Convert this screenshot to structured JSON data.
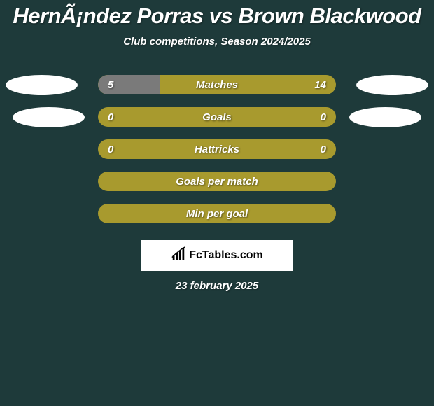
{
  "title": "HernÃ¡ndez Porras vs Brown Blackwood",
  "subtitle": "Club competitions, Season 2024/2025",
  "date": "23 february 2025",
  "colors": {
    "background": "#1e3a3a",
    "bar_base": "#a89a2e",
    "left_fill": "#7a7a7a",
    "right_fill": "#a89a2e",
    "text": "#ffffff",
    "avatar": "#ffffff"
  },
  "branding": {
    "text": "FcTables.com"
  },
  "stats": [
    {
      "label": "Matches",
      "left_value": "5",
      "right_value": "14",
      "left_num": 5,
      "right_num": 14,
      "show_avatars": true,
      "avatar_variant": 1
    },
    {
      "label": "Goals",
      "left_value": "0",
      "right_value": "0",
      "left_num": 0,
      "right_num": 0,
      "show_avatars": true,
      "avatar_variant": 2
    },
    {
      "label": "Hattricks",
      "left_value": "0",
      "right_value": "0",
      "left_num": 0,
      "right_num": 0,
      "show_avatars": false
    },
    {
      "label": "Goals per match",
      "left_value": "",
      "right_value": "",
      "left_num": 0,
      "right_num": 0,
      "show_avatars": false
    },
    {
      "label": "Min per goal",
      "left_value": "",
      "right_value": "",
      "left_num": 0,
      "right_num": 0,
      "show_avatars": false
    }
  ]
}
